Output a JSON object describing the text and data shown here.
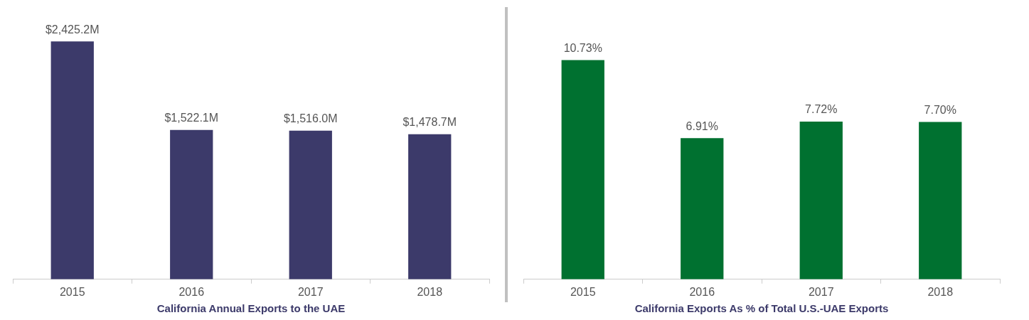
{
  "chart_data": [
    {
      "type": "bar",
      "xlabel": "California Annual Exports to the UAE",
      "categories": [
        "2015",
        "2016",
        "2017",
        "2018"
      ],
      "color": "#3c3a6a",
      "values": [
        2425.2,
        1522.1,
        1516.0,
        1478.7
      ],
      "value_labels": [
        "$2,425.2M",
        "$1,522.1M",
        "$1,516.0M",
        "$1,478.7M"
      ],
      "tick_labels": "x"
    },
    {
      "type": "bar",
      "xlabel": "California Exports As % of Total U.S.-UAE Exports",
      "categories": [
        "2015",
        "2016",
        "2017",
        "2018"
      ],
      "color": "#007130",
      "values": [
        10.73,
        6.91,
        7.72,
        7.7
      ],
      "value_labels": [
        "10.73%",
        "6.91%",
        "7.72%",
        "7.70%"
      ],
      "tick_labels": "x"
    }
  ]
}
